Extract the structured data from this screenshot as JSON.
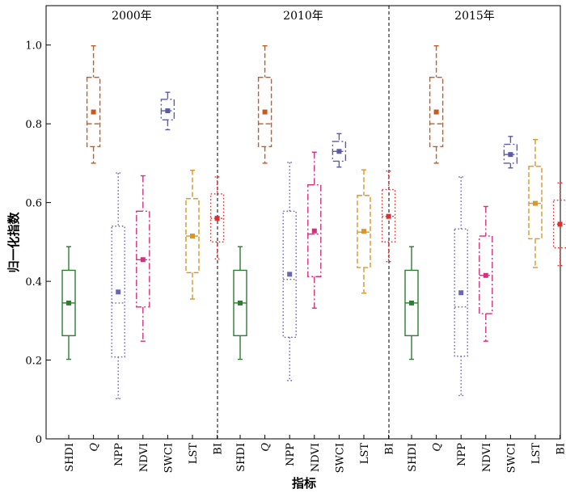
{
  "chart_data": {
    "type": "box",
    "ylabel": "归一化指数",
    "xlabel": "指标",
    "ylim": [
      0,
      1.1
    ],
    "yticks": [
      0,
      0.2,
      0.4,
      0.6,
      0.8,
      1.0
    ],
    "ytick_labels": [
      "0",
      "0.2",
      "0.4",
      "0.6",
      "0.8",
      "1.0"
    ],
    "categories": [
      "SHDI",
      "Q",
      "NPP",
      "NDVI",
      "SWCI",
      "LST",
      "BI"
    ],
    "styles": {
      "SHDI": {
        "color": "#2e7d32",
        "dash": "solid"
      },
      "Q": {
        "color": "#c75a1e",
        "dash": "dash"
      },
      "NPP": {
        "color": "#6b66b0",
        "dash": "dot"
      },
      "NDVI": {
        "color": "#d62d7e",
        "dash": "dashdot"
      },
      "SWCI": {
        "color": "#5a5aa8",
        "dash": "dashdot"
      },
      "LST": {
        "color": "#d9962b",
        "dash": "dash"
      },
      "BI": {
        "color": "#e02d2d",
        "dash": "dot"
      }
    },
    "panels": [
      {
        "title": "2000年",
        "boxes": [
          {
            "label": "SHDI",
            "min": 0.202,
            "q1": 0.262,
            "median": 0.345,
            "q3": 0.428,
            "max": 0.488,
            "mean": 0.345
          },
          {
            "label": "Q",
            "min": 0.7,
            "q1": 0.742,
            "median": 0.8,
            "q3": 0.918,
            "max": 0.998,
            "mean": 0.83
          },
          {
            "label": "NPP",
            "min": 0.102,
            "q1": 0.208,
            "median": 0.345,
            "q3": 0.54,
            "max": 0.675,
            "mean": 0.373
          },
          {
            "label": "NDVI",
            "min": 0.248,
            "q1": 0.335,
            "median": 0.455,
            "q3": 0.578,
            "max": 0.668,
            "mean": 0.455
          },
          {
            "label": "SWCI",
            "min": 0.785,
            "q1": 0.81,
            "median": 0.833,
            "q3": 0.862,
            "max": 0.88,
            "mean": 0.833
          },
          {
            "label": "LST",
            "min": 0.355,
            "q1": 0.422,
            "median": 0.515,
            "q3": 0.61,
            "max": 0.682,
            "mean": 0.515
          },
          {
            "label": "BI",
            "min": 0.457,
            "q1": 0.5,
            "median": 0.56,
            "q3": 0.622,
            "max": 0.665,
            "mean": 0.56
          }
        ]
      },
      {
        "title": "2010年",
        "boxes": [
          {
            "label": "SHDI",
            "min": 0.202,
            "q1": 0.262,
            "median": 0.345,
            "q3": 0.428,
            "max": 0.488,
            "mean": 0.345
          },
          {
            "label": "Q",
            "min": 0.7,
            "q1": 0.742,
            "median": 0.8,
            "q3": 0.918,
            "max": 0.998,
            "mean": 0.83
          },
          {
            "label": "NPP",
            "min": 0.148,
            "q1": 0.258,
            "median": 0.405,
            "q3": 0.578,
            "max": 0.702,
            "mean": 0.418
          },
          {
            "label": "NDVI",
            "min": 0.332,
            "q1": 0.412,
            "median": 0.52,
            "q3": 0.645,
            "max": 0.728,
            "mean": 0.528
          },
          {
            "label": "SWCI",
            "min": 0.69,
            "q1": 0.705,
            "median": 0.73,
            "q3": 0.755,
            "max": 0.775,
            "mean": 0.73
          },
          {
            "label": "LST",
            "min": 0.37,
            "q1": 0.435,
            "median": 0.525,
            "q3": 0.618,
            "max": 0.683,
            "mean": 0.527
          },
          {
            "label": "BI",
            "min": 0.45,
            "q1": 0.5,
            "median": 0.565,
            "q3": 0.633,
            "max": 0.68,
            "mean": 0.565
          }
        ]
      },
      {
        "title": "2015年",
        "boxes": [
          {
            "label": "SHDI",
            "min": 0.202,
            "q1": 0.262,
            "median": 0.345,
            "q3": 0.428,
            "max": 0.488,
            "mean": 0.345
          },
          {
            "label": "Q",
            "min": 0.7,
            "q1": 0.742,
            "median": 0.8,
            "q3": 0.918,
            "max": 0.998,
            "mean": 0.83
          },
          {
            "label": "NPP",
            "min": 0.11,
            "q1": 0.21,
            "median": 0.335,
            "q3": 0.533,
            "max": 0.665,
            "mean": 0.371
          },
          {
            "label": "NDVI",
            "min": 0.248,
            "q1": 0.318,
            "median": 0.415,
            "q3": 0.515,
            "max": 0.59,
            "mean": 0.415
          },
          {
            "label": "SWCI",
            "min": 0.688,
            "q1": 0.7,
            "median": 0.722,
            "q3": 0.748,
            "max": 0.768,
            "mean": 0.722
          },
          {
            "label": "LST",
            "min": 0.435,
            "q1": 0.508,
            "median": 0.598,
            "q3": 0.692,
            "max": 0.76,
            "mean": 0.598
          },
          {
            "label": "BI",
            "min": 0.44,
            "q1": 0.485,
            "median": 0.545,
            "q3": 0.606,
            "max": 0.65,
            "mean": 0.545
          }
        ]
      }
    ]
  }
}
